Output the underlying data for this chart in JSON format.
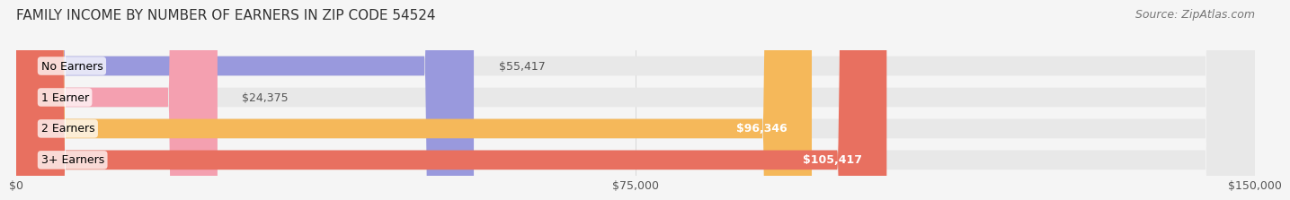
{
  "title": "FAMILY INCOME BY NUMBER OF EARNERS IN ZIP CODE 54524",
  "source": "Source: ZipAtlas.com",
  "categories": [
    "No Earners",
    "1 Earner",
    "2 Earners",
    "3+ Earners"
  ],
  "values": [
    55417,
    24375,
    96346,
    105417
  ],
  "bar_colors": [
    "#9999dd",
    "#f4a0b0",
    "#f5b85a",
    "#e87060"
  ],
  "bar_bg_color": "#e8e8e8",
  "label_colors": [
    "#555555",
    "#555555",
    "#ffffff",
    "#ffffff"
  ],
  "value_labels": [
    "$55,417",
    "$24,375",
    "$96,346",
    "$105,417"
  ],
  "xlim": [
    0,
    150000
  ],
  "xtick_values": [
    0,
    75000,
    150000
  ],
  "xtick_labels": [
    "$0",
    "$75,000",
    "$150,000"
  ],
  "title_fontsize": 11,
  "source_fontsize": 9,
  "label_fontsize": 9,
  "value_fontsize": 9,
  "background_color": "#f5f5f5"
}
